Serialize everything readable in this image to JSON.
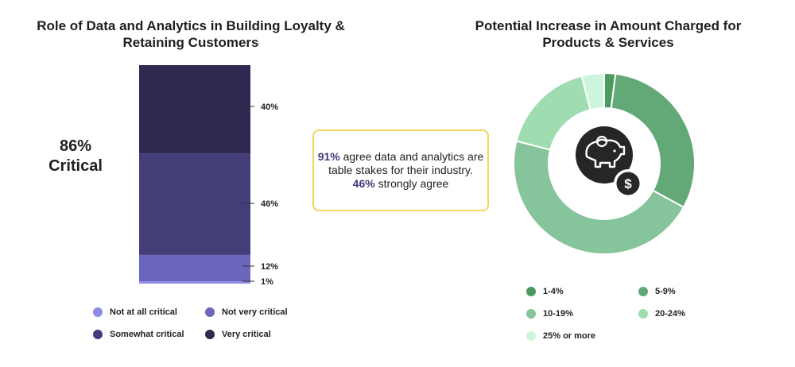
{
  "chart_data": [
    {
      "type": "stacked-bar",
      "title": "Role of Data and Analytics in Building Loyalty & Retaining Customers",
      "summary_value": "86%",
      "summary_label": "Critical",
      "segments": [
        {
          "name": "Not at all critical",
          "value": 1,
          "label": "1%",
          "color": "#8e8aea"
        },
        {
          "name": "Not very critical",
          "value": 12,
          "label": "12%",
          "color": "#6a66bd"
        },
        {
          "name": "Somewhat critical",
          "value": 46,
          "label": "46%",
          "color": "#433d78"
        },
        {
          "name": "Very critical",
          "value": 40,
          "label": "40%",
          "color": "#2f2a51"
        }
      ],
      "legend_placement": "bottom"
    },
    {
      "type": "pie",
      "subtype": "donut",
      "title": "Potential Increase in Amount Charged for Products & Services",
      "center_icon": "piggy-bank-dollar-icon",
      "slices": [
        {
          "name": "1-4%",
          "value": 2,
          "color": "#4c9a60"
        },
        {
          "name": "5-9%",
          "value": 31,
          "color": "#63a877"
        },
        {
          "name": "10-19%",
          "value": 46,
          "color": "#86c49b"
        },
        {
          "name": "20-24%",
          "value": 17,
          "color": "#9fdcaf"
        },
        {
          "name": "25% or more",
          "value": 4,
          "color": "#cdf4dc"
        }
      ],
      "legend_placement": "bottom"
    }
  ],
  "callout": {
    "stat1": "91%",
    "text1": " agree data and analytics are table stakes for their industry.",
    "stat2": "46%",
    "text2": " strongly agree",
    "border_color": "#f2d664"
  }
}
